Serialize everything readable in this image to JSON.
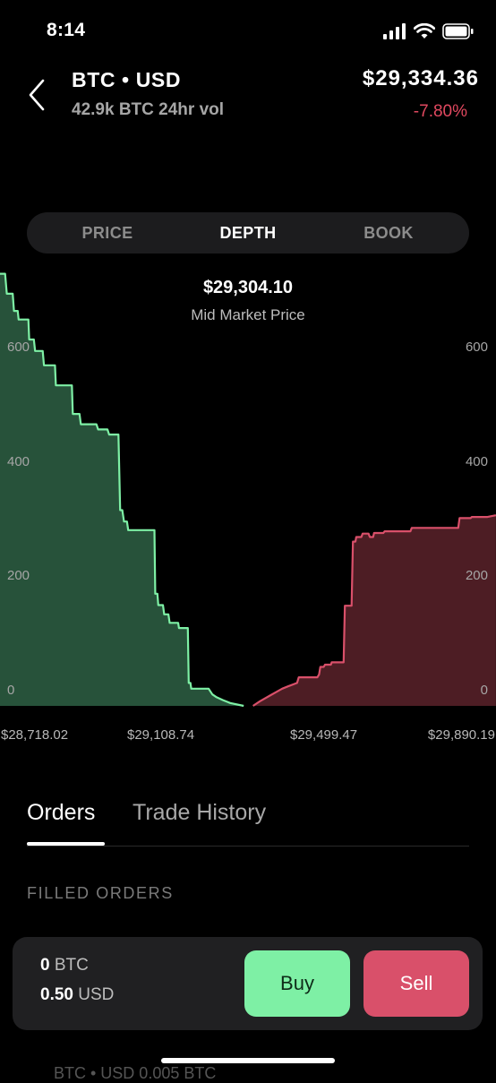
{
  "status_bar": {
    "time": "8:14"
  },
  "header": {
    "pair": "BTC • USD",
    "volume": "42.9k BTC 24hr vol",
    "price": "$29,334.36",
    "change": "-7.80%"
  },
  "segments": [
    "PRICE",
    "DEPTH",
    "BOOK"
  ],
  "active_segment": "DEPTH",
  "mid_market": {
    "value": "$29,304.10",
    "label": "Mid Market Price"
  },
  "chart_data": {
    "type": "area",
    "y_ticks": [
      "0",
      "200",
      "400",
      "600"
    ],
    "x_ticks": [
      "$28,718.02",
      "$29,108.74",
      "$29,499.47",
      "$29,890.19"
    ],
    "ylim": [
      0,
      760
    ],
    "xlim": [
      28718.02,
      29890.19
    ],
    "series": [
      {
        "color": "#7ef0a5",
        "fill": "#27523a",
        "points": [
          [
            28718,
            755
          ],
          [
            28730,
            755
          ],
          [
            28734,
            720
          ],
          [
            28748,
            720
          ],
          [
            28751,
            690
          ],
          [
            28760,
            690
          ],
          [
            28762,
            675
          ],
          [
            28785,
            675
          ],
          [
            28787,
            640
          ],
          [
            28798,
            640
          ],
          [
            28801,
            620
          ],
          [
            28819,
            620
          ],
          [
            28822,
            595
          ],
          [
            28848,
            595
          ],
          [
            28850,
            560
          ],
          [
            28888,
            560
          ],
          [
            28890,
            510
          ],
          [
            28906,
            510
          ],
          [
            28909,
            492
          ],
          [
            28946,
            492
          ],
          [
            28950,
            483
          ],
          [
            28972,
            483
          ],
          [
            28976,
            474
          ],
          [
            28998,
            474
          ],
          [
            29002,
            342
          ],
          [
            29007,
            342
          ],
          [
            29011,
            322
          ],
          [
            29018,
            322
          ],
          [
            29021,
            307
          ],
          [
            29083,
            307
          ],
          [
            29085,
            196
          ],
          [
            29090,
            196
          ],
          [
            29092,
            176
          ],
          [
            29103,
            176
          ],
          [
            29106,
            160
          ],
          [
            29116,
            160
          ],
          [
            29119,
            145
          ],
          [
            29139,
            145
          ],
          [
            29141,
            136
          ],
          [
            29162,
            136
          ],
          [
            29164,
            40
          ],
          [
            29168,
            40
          ],
          [
            29170,
            30
          ],
          [
            29211,
            30
          ],
          [
            29220,
            20
          ],
          [
            29230,
            15
          ],
          [
            29245,
            10
          ],
          [
            29262,
            5
          ],
          [
            29294,
            0
          ]
        ]
      },
      {
        "color": "#d9506a",
        "fill": "#4d1d24",
        "points": [
          [
            29316,
            0
          ],
          [
            29332,
            8
          ],
          [
            29356,
            18
          ],
          [
            29375,
            26
          ],
          [
            29385,
            30
          ],
          [
            29398,
            34
          ],
          [
            29420,
            40
          ],
          [
            29424,
            50
          ],
          [
            29468,
            50
          ],
          [
            29472,
            55
          ],
          [
            29475,
            68
          ],
          [
            29483,
            68
          ],
          [
            29486,
            72
          ],
          [
            29500,
            72
          ],
          [
            29502,
            76
          ],
          [
            29530,
            76
          ],
          [
            29533,
            175
          ],
          [
            29549,
            175
          ],
          [
            29552,
            287
          ],
          [
            29558,
            287
          ],
          [
            29560,
            295
          ],
          [
            29572,
            295
          ],
          [
            29575,
            301
          ],
          [
            29589,
            301
          ],
          [
            29592,
            295
          ],
          [
            29600,
            295
          ],
          [
            29602,
            302
          ],
          [
            29624,
            302
          ],
          [
            29627,
            305
          ],
          [
            29688,
            305
          ],
          [
            29691,
            311
          ],
          [
            29801,
            311
          ],
          [
            29804,
            328
          ],
          [
            29830,
            328
          ],
          [
            29833,
            330
          ],
          [
            29870,
            330
          ],
          [
            29890,
            333
          ]
        ]
      }
    ]
  },
  "tabs": [
    "Orders",
    "Trade History"
  ],
  "section_title": "FILLED ORDERS",
  "balances": {
    "btc_amount": "0",
    "btc_unit": "BTC",
    "usd_amount": "0.50",
    "usd_unit": "USD"
  },
  "actions": {
    "buy": "Buy",
    "sell": "Sell"
  },
  "peek_row": "BTC • USD                                0.005 BTC"
}
